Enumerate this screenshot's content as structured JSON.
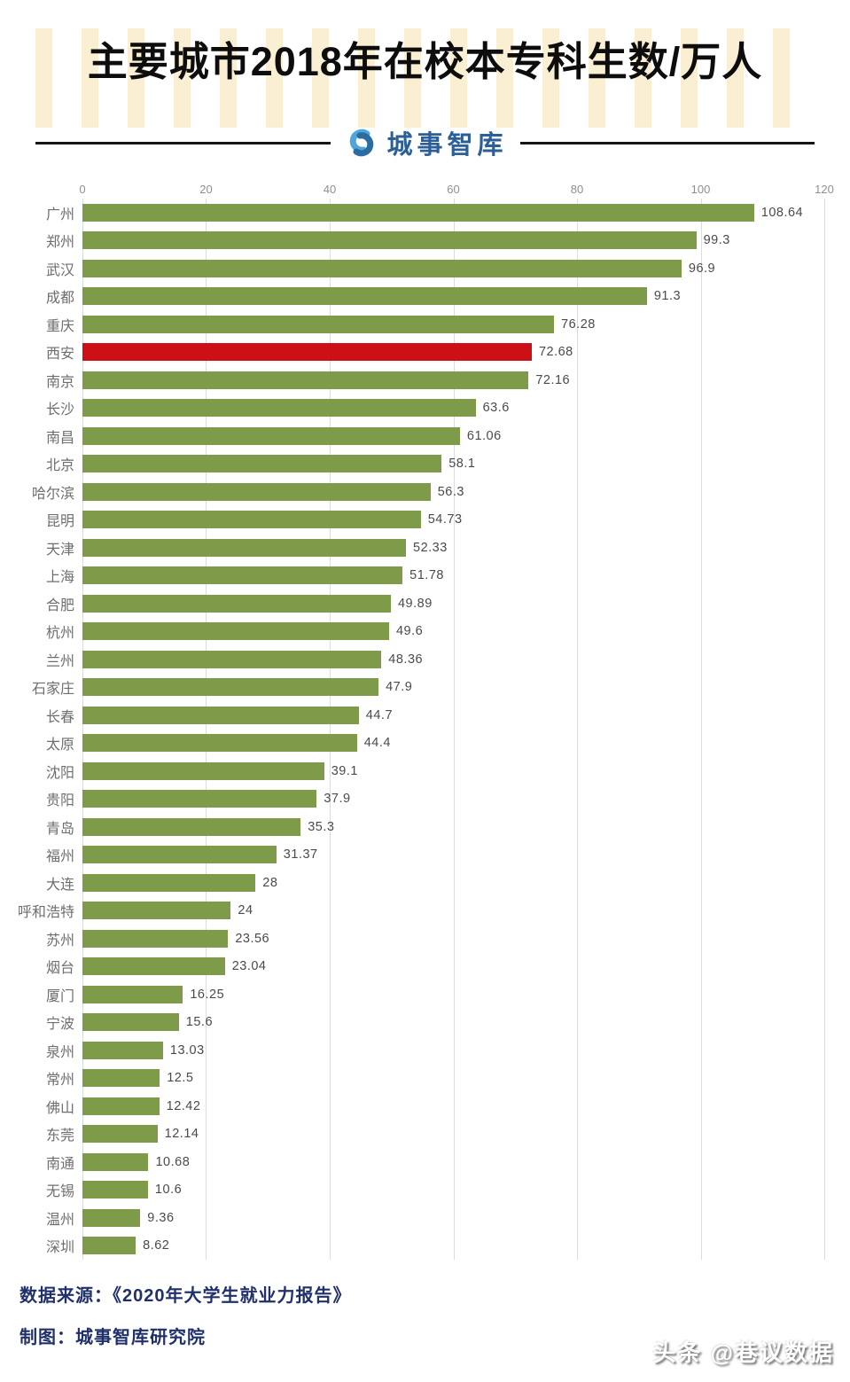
{
  "header": {
    "title": "主要城市2018年在校本专科生数/万人",
    "logo_text": "城事智库",
    "logo_icon": "link-icon",
    "stripe_color": "#faeed3",
    "logo_blue_dark": "#2b5f97",
    "logo_blue_light": "#4ea7da"
  },
  "chart_data": {
    "type": "bar",
    "orientation": "horizontal",
    "title": "主要城市2018年在校本专科生数/万人",
    "xlabel": "",
    "ylabel": "",
    "xlim": [
      0,
      120
    ],
    "x_ticks": [
      0,
      20,
      40,
      60,
      80,
      100,
      120
    ],
    "grid": true,
    "legend": "none",
    "bar_color": "#7d9b49",
    "highlight_color": "#cc1016",
    "highlight_category": "西安",
    "categories": [
      "广州",
      "郑州",
      "武汉",
      "成都",
      "重庆",
      "西安",
      "南京",
      "长沙",
      "南昌",
      "北京",
      "哈尔滨",
      "昆明",
      "天津",
      "上海",
      "合肥",
      "杭州",
      "兰州",
      "石家庄",
      "长春",
      "太原",
      "沈阳",
      "贵阳",
      "青岛",
      "福州",
      "大连",
      "呼和浩特",
      "苏州",
      "烟台",
      "厦门",
      "宁波",
      "泉州",
      "常州",
      "佛山",
      "东莞",
      "南通",
      "无锡",
      "温州",
      "深圳"
    ],
    "values": [
      108.64,
      99.3,
      96.9,
      91.3,
      76.28,
      72.68,
      72.16,
      63.6,
      61.06,
      58.1,
      56.3,
      54.73,
      52.33,
      51.78,
      49.89,
      49.6,
      48.36,
      47.9,
      44.7,
      44.4,
      39.1,
      37.9,
      35.3,
      31.37,
      28,
      24,
      23.56,
      23.04,
      16.25,
      15.6,
      13.03,
      12.5,
      12.42,
      12.14,
      10.68,
      10.6,
      9.36,
      8.62
    ],
    "value_labels": [
      "108.64",
      "99.3",
      "96.9",
      "91.3",
      "76.28",
      "72.68",
      "72.16",
      "63.6",
      "61.06",
      "58.1",
      "56.3",
      "54.73",
      "52.33",
      "51.78",
      "49.89",
      "49.6",
      "48.36",
      "47.9",
      "44.7",
      "44.4",
      "39.1",
      "37.9",
      "35.3",
      "31.37",
      "28",
      "24",
      "23.56",
      "23.04",
      "16.25",
      "15.6",
      "13.03",
      "12.5",
      "12.42",
      "12.14",
      "10.68",
      "10.6",
      "9.36",
      "8.62"
    ]
  },
  "footer": {
    "source_line": "数据来源：《2020年大学生就业力报告》",
    "credit_line": "制图：城事智库研究院",
    "watermark": "头条 @巷议数据"
  }
}
